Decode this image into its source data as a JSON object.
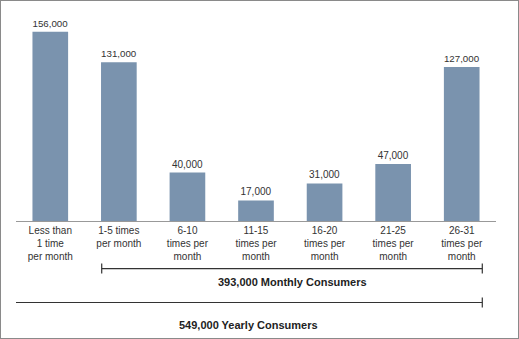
{
  "chart_data": {
    "type": "bar",
    "categories": [
      "Less than 1 time per month",
      "1-5 times per month",
      "6-10 times per month",
      "11-15 times per month",
      "16-20 times per month",
      "21-25 times per month",
      "26-31 times per month"
    ],
    "values": [
      156000,
      131000,
      40000,
      17000,
      31000,
      47000,
      127000
    ],
    "value_labels": [
      "156,000",
      "131,000",
      "40,000",
      "17,000",
      "31,000",
      "47,000",
      "127,000"
    ],
    "color": "#7a93ae",
    "ylim": [
      0,
      160000
    ],
    "yticks": [],
    "grid": false,
    "data_labels": true,
    "tick_labels": "x",
    "annotations": [
      {
        "text": "393,000 Monthly Consumers",
        "from": "1-5 times per month",
        "to": "26-31 times per month"
      },
      {
        "text": "549,000 Yearly Consumers",
        "from": "Less than 1 time per month",
        "to": "26-31 times per month"
      }
    ]
  }
}
